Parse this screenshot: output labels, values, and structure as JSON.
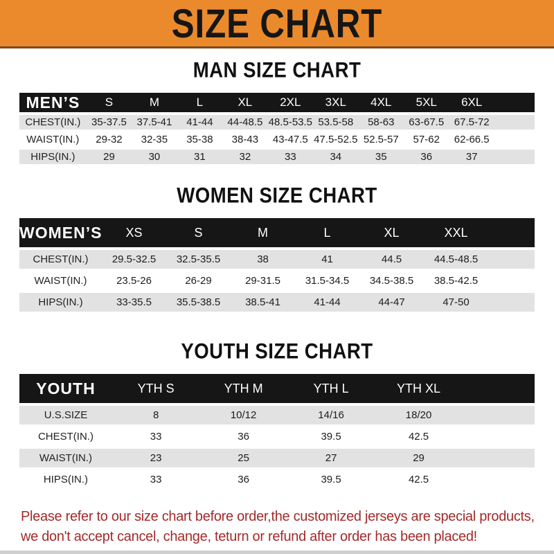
{
  "banner": {
    "title": "SIZE CHART"
  },
  "sections": [
    {
      "id": "men",
      "heading": "MAN SIZE CHART",
      "header_label": "MEN’S",
      "columns": [
        "S",
        "M",
        "L",
        "XL",
        "2XL",
        "3XL",
        "4XL",
        "5XL",
        "6XL"
      ],
      "rows": [
        {
          "label": "CHEST(IN.)",
          "values": [
            "35-37.5",
            "37.5-41",
            "41-44",
            "44-48.5",
            "48.5-53.5",
            "53.5-58",
            "58-63",
            "63-67.5",
            "67.5-72"
          ]
        },
        {
          "label": "WAIST(IN.)",
          "values": [
            "29-32",
            "32-35",
            "35-38",
            "38-43",
            "43-47.5",
            "47.5-52.5",
            "52.5-57",
            "57-62",
            "62-66.5"
          ]
        },
        {
          "label": "HIPS(IN.)",
          "values": [
            "29",
            "30",
            "31",
            "32",
            "33",
            "34",
            "35",
            "36",
            "37"
          ]
        }
      ]
    },
    {
      "id": "women",
      "heading": "WOMEN SIZE CHART",
      "header_label": "WOMEN’S",
      "columns": [
        "XS",
        "S",
        "M",
        "L",
        "XL",
        "XXL"
      ],
      "rows": [
        {
          "label": "CHEST(IN.)",
          "values": [
            "29.5-32.5",
            "32.5-35.5",
            "38",
            "41",
            "44.5",
            "44.5-48.5"
          ]
        },
        {
          "label": "WAIST(IN.)",
          "values": [
            "23.5-26",
            "26-29",
            "29-31.5",
            "31.5-34.5",
            "34.5-38.5",
            "38.5-42.5"
          ]
        },
        {
          "label": "HIPS(IN.)",
          "values": [
            "33-35.5",
            "35.5-38.5",
            "38.5-41",
            "41-44",
            "44-47",
            "47-50"
          ]
        }
      ]
    },
    {
      "id": "youth",
      "heading": "YOUTH SIZE CHART",
      "header_label": "YOUTH",
      "columns": [
        "YTH S",
        "YTH M",
        "YTH L",
        "YTH XL"
      ],
      "rows": [
        {
          "label": "U.S.SIZE",
          "values": [
            "8",
            "10/12",
            "14/16",
            "18/20"
          ]
        },
        {
          "label": "CHEST(IN.)",
          "values": [
            "33",
            "36",
            "39.5",
            "42.5"
          ]
        },
        {
          "label": "WAIST(IN.)",
          "values": [
            "23",
            "25",
            "27",
            "29"
          ]
        },
        {
          "label": "HIPS(IN.)",
          "values": [
            "33",
            "36",
            "39.5",
            "42.5"
          ]
        }
      ]
    }
  ],
  "footer": {
    "line1": "Please refer to our size chart before order,the customized jerseys are special products,",
    "line2": "we don't accept cancel, change, teturn or refund after order has been placed!"
  },
  "colors": {
    "banner_bg": "#ea8a2d",
    "header_bar_bg": "#161616",
    "row_gray": "#e2e2e2",
    "footer_red": "#a32a2a"
  }
}
